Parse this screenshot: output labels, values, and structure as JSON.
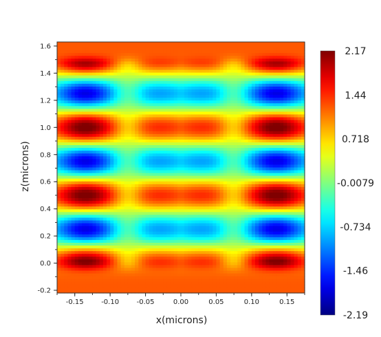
{
  "chart_data": {
    "type": "heatmap",
    "title": "",
    "xlabel": "x(microns)",
    "ylabel": "z(microns)",
    "xlim": [
      -0.175,
      0.175
    ],
    "ylim": [
      -0.22,
      1.63
    ],
    "x_ticks": [
      "-0.15",
      "-0.10",
      "-0.05",
      "0.00",
      "0.05",
      "0.10",
      "0.15"
    ],
    "y_ticks": [
      "-0.2",
      "0.0",
      "0.2",
      "0.4",
      "0.6",
      "0.8",
      "1.0",
      "1.2",
      "1.4",
      "1.6"
    ],
    "colormap": "jet",
    "colorbar": {
      "min": -2.19,
      "max": 2.17,
      "labels": [
        "2.17",
        "1.44",
        "0.718",
        "-0.0079",
        "-0.734",
        "-1.46",
        "-2.19"
      ]
    },
    "field": {
      "description_of_bands": "alternating horizontal bands",
      "maxima_z": [
        0.0,
        0.5,
        1.0
      ],
      "minima_z": [
        0.25,
        0.75,
        1.25
      ],
      "peak_x": [
        -0.135,
        0.135
      ],
      "peak_value": 2.17,
      "trough_value": -2.19,
      "background_value": 1.1
    }
  }
}
